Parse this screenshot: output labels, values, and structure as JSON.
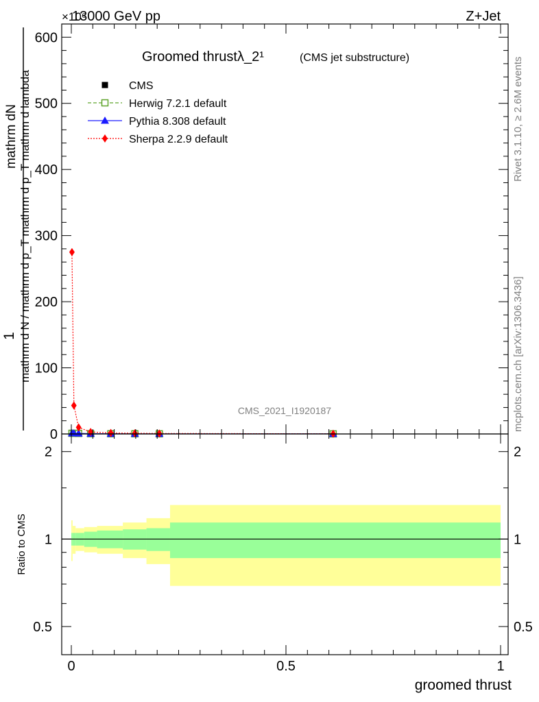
{
  "header": {
    "energy": "13000 GeV pp",
    "process": "Z+Jet",
    "exponent": "×10⁶"
  },
  "side_labels": {
    "rivet": "Rivet 3.1.10, ≥ 2.6M events",
    "mcplots": "mcplots.cern.ch [arXiv:1306.3436]"
  },
  "chart_data": [
    {
      "type": "line",
      "title": "Groomed thrustλ_2¹",
      "subtitle": "(CMS jet substructure)",
      "watermark": "CMS_2021_I1920187",
      "ylabel_parts": {
        "one": "1",
        "numerator": "mathrm dN",
        "pt_ratio": "mathrm d N / mathrm d p_T mathrm d p_T mathrm d lambda"
      },
      "xlim": [
        0,
        1
      ],
      "ylim": [
        0,
        620
      ],
      "y_scale_factor": 1000000,
      "yticks": [
        0,
        100,
        200,
        300,
        400,
        500,
        600
      ],
      "ytick_labels": [
        "0",
        "100",
        "200",
        "300",
        "400",
        "500",
        "600"
      ],
      "legend_placement": "top-left",
      "series": [
        {
          "name": "CMS",
          "marker": "filled-square",
          "color": "#000000",
          "x": [
            0.0015,
            0.006,
            0.017,
            0.045,
            0.092,
            0.148,
            0.205,
            0.61
          ],
          "y": [
            1.0,
            1.0,
            0.8,
            0.4,
            0.3,
            0.25,
            0.2,
            0.1
          ]
        },
        {
          "name": "Herwig 7.2.1 default",
          "marker": "open-square",
          "line": "dashed",
          "color": "#5ea32a",
          "x": [
            0.0015,
            0.006,
            0.017,
            0.045,
            0.092,
            0.148,
            0.205,
            0.61
          ],
          "y": [
            1.0,
            1.0,
            0.8,
            0.4,
            0.3,
            0.25,
            0.2,
            0.1
          ]
        },
        {
          "name": "Pythia 8.308 default",
          "marker": "filled-triangle",
          "line": "solid",
          "color": "#1a1aff",
          "x": [
            0.0015,
            0.006,
            0.017,
            0.045,
            0.092,
            0.148,
            0.205,
            0.61
          ],
          "y": [
            1.0,
            1.0,
            0.8,
            0.4,
            0.3,
            0.25,
            0.2,
            0.1
          ]
        },
        {
          "name": "Sherpa 2.2.9 default",
          "marker": "filled-diamond",
          "line": "dotted",
          "color": "#ff0000",
          "x": [
            0.0015,
            0.006,
            0.017,
            0.045,
            0.092,
            0.148,
            0.205,
            0.61
          ],
          "y": [
            275,
            43,
            10,
            3,
            1.5,
            1.0,
            0.7,
            0.2
          ]
        }
      ]
    },
    {
      "type": "area",
      "ylabel": "Ratio to CMS",
      "xlabel": "groomed thrust",
      "xlim": [
        0,
        1
      ],
      "ylim": [
        0.4,
        2.3
      ],
      "y_scale": "log",
      "yticks": [
        0.5,
        1,
        2
      ],
      "ytick_labels": [
        "0.5",
        "1",
        "2"
      ],
      "xticks": [
        0,
        0.5,
        1
      ],
      "xtick_labels": [
        "0",
        "0.5",
        "1"
      ],
      "reference_line": 1,
      "bins": [
        {
          "x0": 0.0,
          "x1": 0.003,
          "stat": 0.05,
          "total": 0.16
        },
        {
          "x0": 0.003,
          "x1": 0.01,
          "stat": 0.05,
          "total": 0.11
        },
        {
          "x0": 0.01,
          "x1": 0.03,
          "stat": 0.05,
          "total": 0.09
        },
        {
          "x0": 0.03,
          "x1": 0.06,
          "stat": 0.06,
          "total": 0.1
        },
        {
          "x0": 0.06,
          "x1": 0.12,
          "stat": 0.07,
          "total": 0.11
        },
        {
          "x0": 0.12,
          "x1": 0.175,
          "stat": 0.08,
          "total": 0.14
        },
        {
          "x0": 0.175,
          "x1": 0.23,
          "stat": 0.09,
          "total": 0.18
        },
        {
          "x0": 0.23,
          "x1": 1.0,
          "stat": 0.14,
          "total": 0.31
        }
      ],
      "band_colors": {
        "stat": "#99ff99",
        "total": "#ffff99"
      }
    }
  ]
}
